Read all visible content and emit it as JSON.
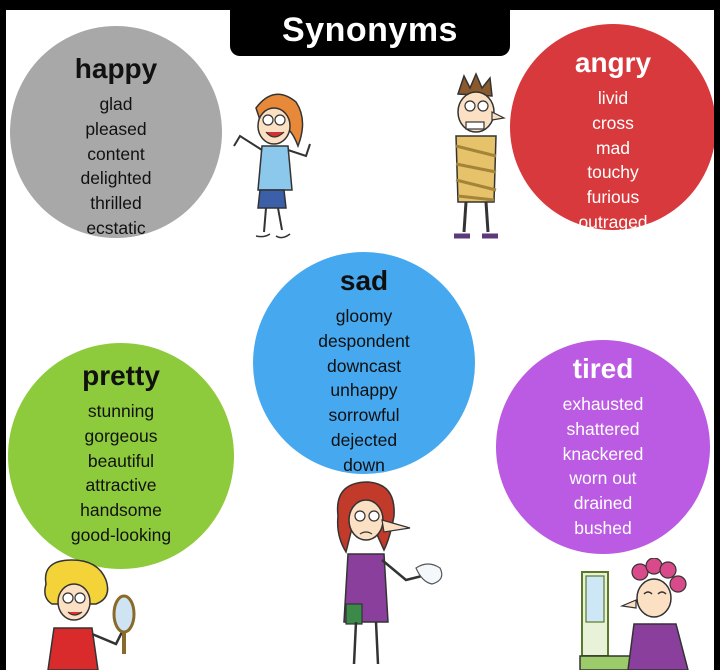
{
  "title": "Synonyms",
  "colors": {
    "happy": "#a8a8a8",
    "angry": "#d8393c",
    "sad": "#46a9ef",
    "pretty": "#8ecb3c",
    "tired": "#bb5ae2"
  },
  "groups": {
    "happy": {
      "heading": "happy",
      "words": [
        "glad",
        "pleased",
        "content",
        "delighted",
        "thrilled",
        "ecstatic"
      ]
    },
    "angry": {
      "heading": "angry",
      "words": [
        "livid",
        "cross",
        "mad",
        "touchy",
        "furious",
        "outraged"
      ]
    },
    "sad": {
      "heading": "sad",
      "words": [
        "gloomy",
        "despondent",
        "downcast",
        "unhappy",
        "sorrowful",
        "dejected",
        "down"
      ]
    },
    "pretty": {
      "heading": "pretty",
      "words": [
        "stunning",
        "gorgeous",
        "beautiful",
        "attractive",
        "handsome",
        "good-looking"
      ]
    },
    "tired": {
      "heading": "tired",
      "words": [
        "exhausted",
        "shattered",
        "knackered",
        "worn out",
        "drained",
        "bushed"
      ]
    }
  },
  "illustrations": {
    "happy": "jumping-woman-illustration",
    "angry": "taped-angry-man-illustration",
    "sad": "crying-woman-illustration",
    "pretty": "woman-with-mirror-illustration",
    "tired": "woman-in-curlers-illustration"
  }
}
